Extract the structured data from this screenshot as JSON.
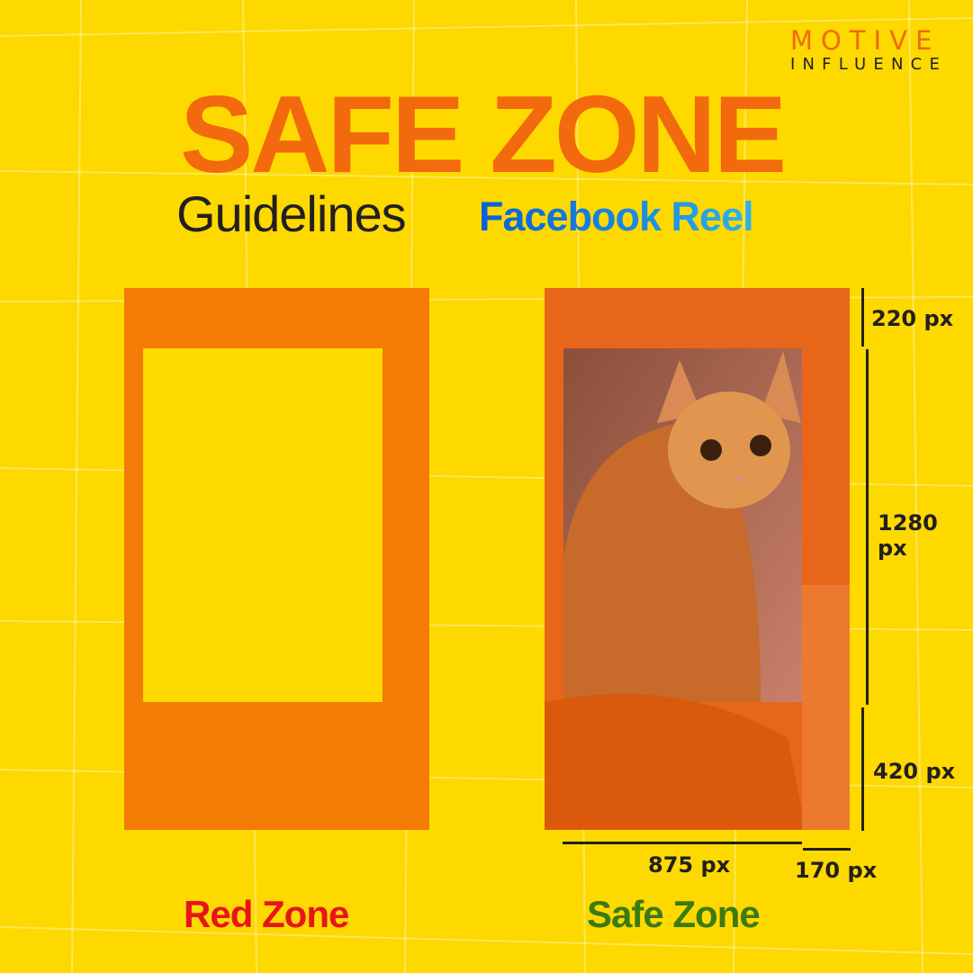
{
  "logo": {
    "line1": "MOTIVE",
    "line2": "INFLUENCE"
  },
  "header": {
    "title": "SAFE ZONE",
    "subtitle": "Guidelines",
    "platform": "Facebook Reel"
  },
  "measurements": {
    "top": "220 px",
    "middle": "1280 px",
    "bottom": "420 px",
    "width": "875 px",
    "side": "170 px"
  },
  "labels": {
    "red_zone": "Red Zone",
    "safe_zone": "Safe Zone"
  },
  "colors": {
    "background": "#FDD900",
    "title": "#F2690E",
    "red_zone": "#E8141B",
    "safe_zone": "#3C7A12",
    "frame": "#F47B06"
  }
}
